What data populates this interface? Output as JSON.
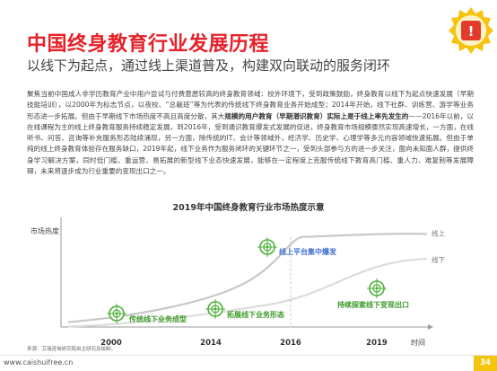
{
  "header": {
    "title": "中国终身教育行业发展历程",
    "subtitle": "以线下为起点，通过线上渠道普及，构建双向联动的服务闭环"
  },
  "body": {
    "p1": "聚焦当前中国成人非学历教育产业中用户尝试与付费意愿较高的终身教育领域：校外环境下，受到政策鼓励，终身教育以线下为起点快速发展（早期技能培训），以2000年为标志节点，以夜校、“总裁班”等为代表的传统线下终身教育业务开始成型；2014年开始，线下社群、训练营、游学等业务形态进一步拓展。但由于早期线下市场热度不高且高度分散，其大",
    "bold": "规模的用户教育（早期潜识教育）实际上是于线上率先发生的",
    "p2": "——2016年以前，以在线课程为主的线上终身教育服务持续稳定发展，到2016年，受到通识教育爆发式发展的促进，终身教育市场规模骤然实现高速增长，一方面，在线听书、问答、咨询等补充服务形态陆续涌现，另一方面，除传统的IT、会计等领域外，经济学、历史学、心理学等多元内容领域快速拓展。但由于单纯的线上终身教育体验存在服务缺口，2019年起，线下业务作为服务闭环的关键环节之一，受到头部参与方的进一步关注，面向未知面人群，提供终身学习解决方案，同时低门槛、重运营、易拓展的新型线下业态快速发展，能够在一定程度上克服传统线下教育高门槛、重人力、难复制等发展障碍，未来将逐步成为行业重要的变现出口之一。"
  },
  "chart_data": {
    "type": "line",
    "title": "2019年中国终身教育行业市场热度示意",
    "ylabel": "市场热度",
    "xlabel": "时间",
    "x": [
      "2000",
      "2014",
      "2016",
      "2019"
    ],
    "series": [
      {
        "name": "线上",
        "values": [
          10,
          24,
          88,
          96
        ]
      },
      {
        "name": "线下",
        "values": [
          4,
          12,
          22,
          70
        ]
      }
    ],
    "milestones": [
      {
        "x": "2000",
        "label": "传统线下业务成型",
        "series": "线下",
        "value": 4
      },
      {
        "x": "2014",
        "label": "拓展线下业务形态",
        "series": "线下",
        "value": 12
      },
      {
        "x": "2016",
        "label": "线上平台集中爆发",
        "series": "线上",
        "value": 88
      },
      {
        "x": "2019",
        "label": "持续探索线下变现出口",
        "series": "线下",
        "value": 70
      }
    ],
    "colors": {
      "online": "#c8c8c8",
      "offline": "#dcdcdc",
      "accent": "#4ab034",
      "label_online": "#3d6fcf",
      "label_offline": "#3d9a2a"
    }
  },
  "footer": {
    "source": "来源：艾瑞咨询研究院自主研究及绘制。",
    "url": "www.caishuifree.cn",
    "page": "34"
  }
}
